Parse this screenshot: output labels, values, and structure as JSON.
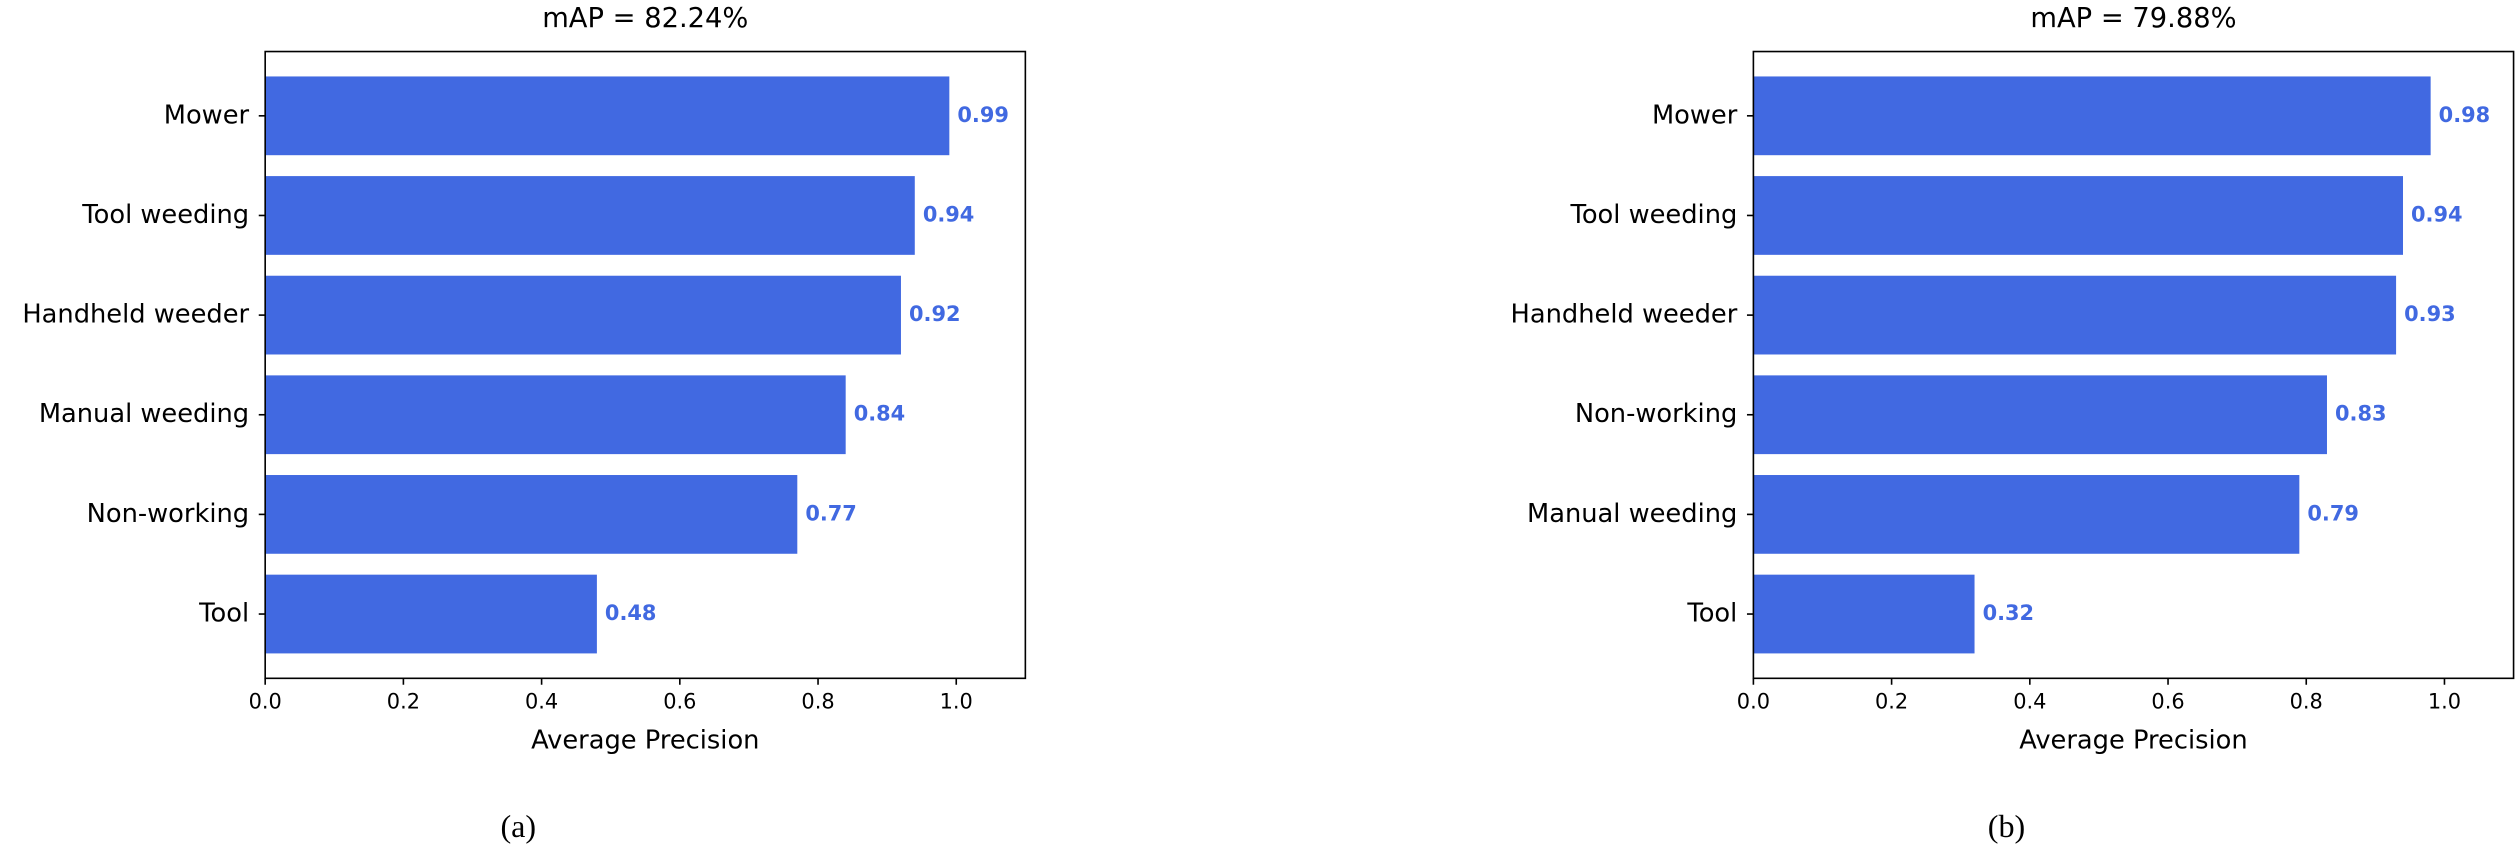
{
  "chart_data": [
    {
      "type": "barh",
      "title": "mAP = 82.24%",
      "caption": "(a)",
      "xlabel": "Average Precision",
      "categories": [
        "Mower",
        "Tool weeding",
        "Handheld weeder",
        "Manual weeding",
        "Non-working",
        "Tool"
      ],
      "values": [
        0.99,
        0.94,
        0.92,
        0.84,
        0.77,
        0.48
      ],
      "color": "#4169e1",
      "xlim": [
        0,
        1.1
      ],
      "xticks": [
        {
          "value": 0,
          "label": "0.0"
        },
        0.2,
        0.4,
        0.6,
        0.8,
        {
          "value": 1,
          "label": "1.0"
        }
      ]
    },
    {
      "type": "barh",
      "title": "mAP = 79.88%",
      "caption": "(b)",
      "xlabel": "Average Precision",
      "categories": [
        "Mower",
        "Tool weeding",
        "Handheld weeder",
        "Non-working",
        "Manual weeding",
        "Tool"
      ],
      "values": [
        0.98,
        0.94,
        0.93,
        0.83,
        0.79,
        0.32
      ],
      "color": "#4169e1",
      "xlim": [
        0,
        1.1
      ],
      "xticks": [
        {
          "value": 0,
          "label": "0.0"
        },
        0.2,
        0.4,
        0.6,
        0.8,
        {
          "value": 1,
          "label": "1.0"
        }
      ]
    }
  ]
}
